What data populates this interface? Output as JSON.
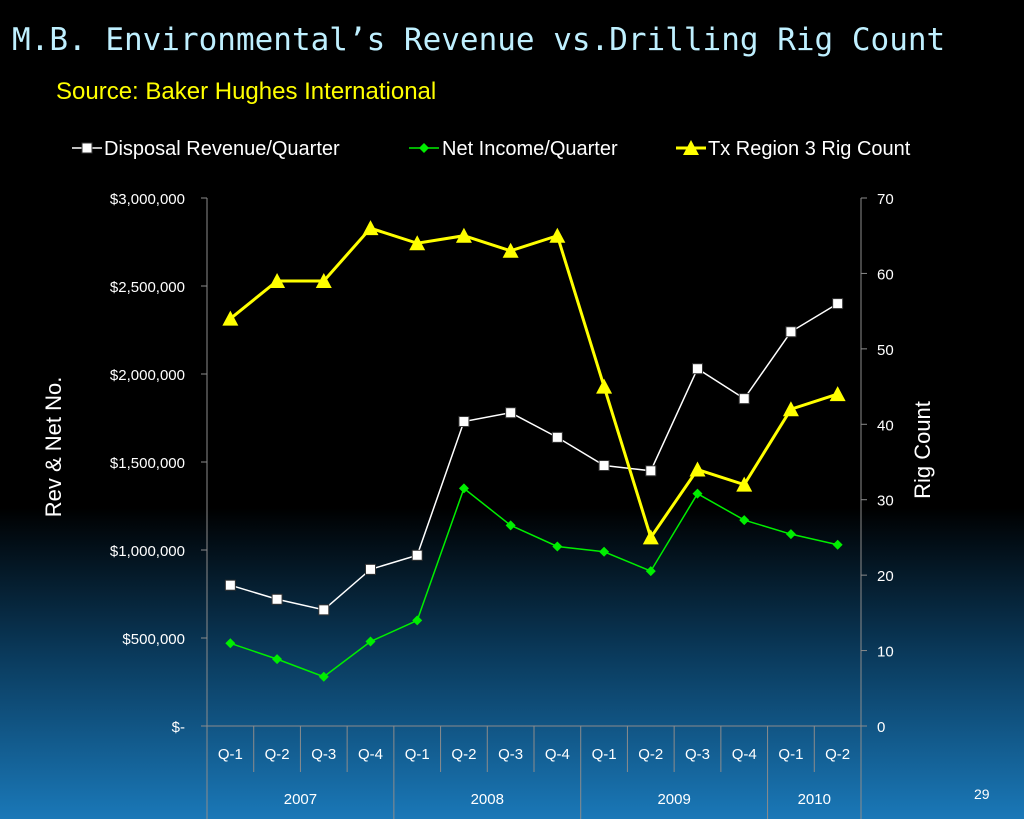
{
  "slide": {
    "title": "M.B. Environmental’s Revenue vs.Drilling Rig Count",
    "source": "Source:  Baker Hughes International",
    "page_number": "29"
  },
  "chart_data": {
    "type": "line",
    "categories": [
      "Q-1",
      "Q-2",
      "Q-3",
      "Q-4",
      "Q-1",
      "Q-2",
      "Q-3",
      "Q-4",
      "Q-1",
      "Q-2",
      "Q-3",
      "Q-4",
      "Q-1",
      "Q-2"
    ],
    "year_groups": [
      {
        "label": "2007",
        "span": 4
      },
      {
        "label": "2008",
        "span": 4
      },
      {
        "label": "2009",
        "span": 4
      },
      {
        "label": "2010",
        "span": 2
      }
    ],
    "ylabel": "Rev & Net No.",
    "y2label": "Rig Count",
    "ylim": [
      0,
      3000000
    ],
    "y2lim": [
      0,
      70
    ],
    "y_ticks": [
      {
        "value": 0,
        "label": "$-"
      },
      {
        "value": 500000,
        "label": "$500,000"
      },
      {
        "value": 1000000,
        "label": "$1,000,000"
      },
      {
        "value": 1500000,
        "label": "$1,500,000"
      },
      {
        "value": 2000000,
        "label": "$2,000,000"
      },
      {
        "value": 2500000,
        "label": "$2,500,000"
      },
      {
        "value": 3000000,
        "label": "$3,000,000"
      }
    ],
    "y2_ticks": [
      {
        "value": 0,
        "label": "0"
      },
      {
        "value": 10,
        "label": "10"
      },
      {
        "value": 20,
        "label": "20"
      },
      {
        "value": 30,
        "label": "30"
      },
      {
        "value": 40,
        "label": "40"
      },
      {
        "value": 50,
        "label": "50"
      },
      {
        "value": 60,
        "label": "60"
      },
      {
        "value": 70,
        "label": "70"
      }
    ],
    "grid": false,
    "legend": "top",
    "series": [
      {
        "name": "Disposal Revenue/Quarter",
        "axis": "left",
        "color": "#ffffff",
        "marker": "square",
        "values": [
          800000,
          720000,
          660000,
          890000,
          970000,
          1730000,
          1780000,
          1640000,
          1480000,
          1450000,
          2030000,
          1860000,
          2240000,
          2400000
        ]
      },
      {
        "name": "Net Income/Quarter",
        "axis": "left",
        "color": "#00ee00",
        "marker": "diamond",
        "values": [
          470000,
          380000,
          280000,
          480000,
          600000,
          1350000,
          1140000,
          1020000,
          990000,
          880000,
          1320000,
          1170000,
          1090000,
          1030000
        ]
      },
      {
        "name": "Tx Region 3 Rig Count",
        "axis": "right",
        "color": "#ffff00",
        "marker": "triangle",
        "values": [
          54,
          59,
          59,
          66,
          64,
          65,
          63,
          65,
          45,
          25,
          34,
          32,
          42,
          44
        ]
      }
    ]
  }
}
